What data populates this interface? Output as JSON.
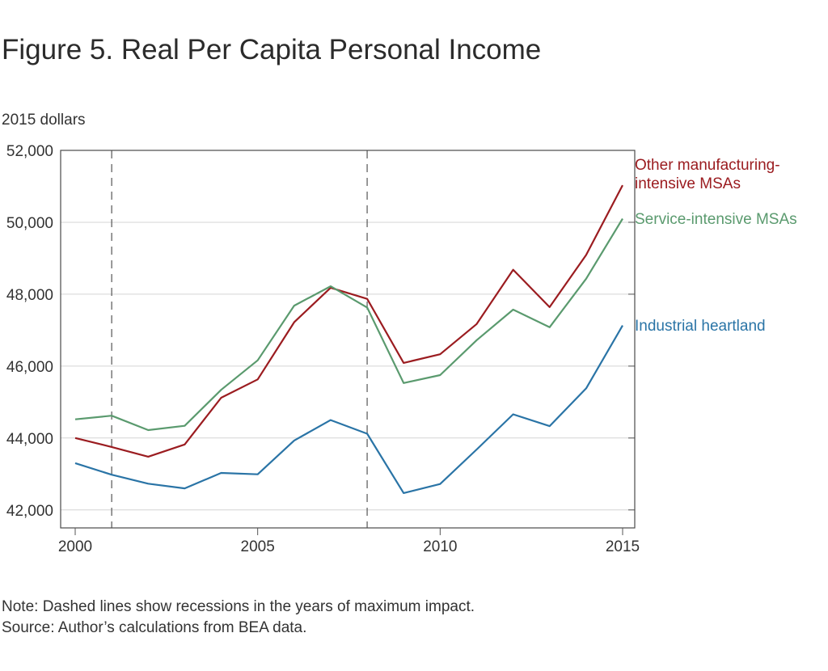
{
  "figure": {
    "title": "Figure 5. Real Per Capita Personal Income",
    "units": "2015 dollars",
    "note": "Note: Dashed lines show recessions in the years of maximum impact.",
    "source": "Source: Author’s calculations from BEA data."
  },
  "chart_data": {
    "type": "line",
    "title": "Figure 5. Real Per Capita Personal Income",
    "ylabel": "2015 dollars",
    "xlabel": "",
    "x": [
      2000,
      2001,
      2002,
      2003,
      2004,
      2005,
      2006,
      2007,
      2008,
      2009,
      2010,
      2011,
      2012,
      2013,
      2014,
      2015
    ],
    "xlim": [
      2000,
      2015
    ],
    "ylim": [
      41500,
      52000
    ],
    "x_ticks": [
      2000,
      2005,
      2010,
      2015
    ],
    "x_tick_labels": [
      "2000",
      "2005",
      "2010",
      "2015"
    ],
    "y_ticks": [
      42000,
      44000,
      46000,
      48000,
      50000,
      52000
    ],
    "y_tick_labels": [
      "42,000",
      "44,000",
      "46,000",
      "48,000",
      "50,000",
      "52,000"
    ],
    "grid": "horizontal",
    "legend": "direct labels at right end of lines",
    "recession_markers": [
      2001,
      2008
    ],
    "series": [
      {
        "name_lines": [
          "Other manufacturing-",
          "intensive MSAs"
        ],
        "color": "#9b1c20",
        "values": [
          44000,
          43750,
          43480,
          43820,
          45120,
          45630,
          47220,
          48180,
          47870,
          46090,
          46330,
          47170,
          48680,
          47640,
          49090,
          51030
        ]
      },
      {
        "name_lines": [
          "Service-intensive MSAs"
        ],
        "color": "#5a9a6e",
        "values": [
          44520,
          44620,
          44220,
          44340,
          45340,
          46160,
          47680,
          48220,
          47630,
          45530,
          45750,
          46720,
          47570,
          47080,
          48430,
          50100
        ]
      },
      {
        "name_lines": [
          "Industrial heartland"
        ],
        "color": "#2a74a6",
        "values": [
          43300,
          42980,
          42730,
          42600,
          43030,
          42990,
          43930,
          44500,
          44120,
          42470,
          42720,
          43680,
          44660,
          44330,
          45380,
          47130
        ]
      }
    ]
  }
}
